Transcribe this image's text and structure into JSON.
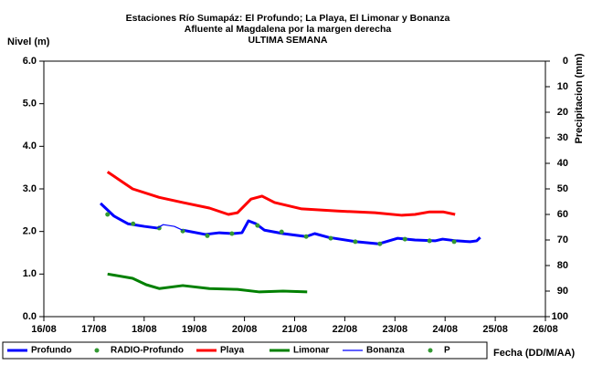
{
  "chart_data": {
    "type": "line",
    "title": [
      "Estaciones Río Sumapáz: El Profundo; La Playa, El Limonar y Bonanza",
      "Afluente al Magdalena por la margen derecha",
      "ULTIMA SEMANA"
    ],
    "ylabel": "Nivel (m)",
    "y2label": "Precipitacion (mm)",
    "xlabel": "Fecha (DD/M/AA)",
    "xlim": [
      16,
      26
    ],
    "xticks": [
      {
        "value": 16,
        "label": "16/08"
      },
      {
        "value": 17,
        "label": "17/08"
      },
      {
        "value": 18,
        "label": "18/08"
      },
      {
        "value": 19,
        "label": "19/08"
      },
      {
        "value": 20,
        "label": "20/08"
      },
      {
        "value": 21,
        "label": "21/08"
      },
      {
        "value": 22,
        "label": "22/08"
      },
      {
        "value": 23,
        "label": "23/08"
      },
      {
        "value": 24,
        "label": "24/08"
      },
      {
        "value": 25,
        "label": "25/08"
      },
      {
        "value": 26,
        "label": "26/08"
      }
    ],
    "ylim": [
      0,
      6
    ],
    "yticks": [
      {
        "value": 0,
        "label": "0.0"
      },
      {
        "value": 1,
        "label": "1.0"
      },
      {
        "value": 2,
        "label": "2.0"
      },
      {
        "value": 3,
        "label": "3.0"
      },
      {
        "value": 4,
        "label": "4.0"
      },
      {
        "value": 5,
        "label": "5.0"
      },
      {
        "value": 6,
        "label": "6.0"
      }
    ],
    "y2lim": [
      100,
      0
    ],
    "y2ticks": [
      0,
      10,
      20,
      30,
      40,
      50,
      60,
      70,
      80,
      90,
      100
    ],
    "series": [
      {
        "name": "Profundo",
        "color": "#0000ff",
        "line_width": 3,
        "marker": false,
        "x": [
          17.13,
          17.4,
          17.68,
          18.0,
          18.26,
          18.38,
          18.77,
          19.22,
          19.5,
          19.77,
          19.95,
          20.08,
          20.23,
          20.4,
          20.77,
          21.23,
          21.4,
          21.68,
          22.23,
          22.68,
          23.05,
          23.4,
          23.8,
          23.95,
          24.23,
          24.5,
          24.63,
          24.7
        ],
        "values": [
          2.66,
          2.36,
          2.18,
          2.12,
          2.08,
          null,
          2.03,
          1.93,
          1.97,
          1.95,
          1.97,
          2.25,
          2.18,
          2.03,
          1.95,
          1.88,
          1.95,
          1.86,
          1.76,
          1.71,
          1.84,
          1.8,
          1.78,
          1.82,
          1.78,
          1.76,
          1.78,
          1.86
        ]
      },
      {
        "name": "RADIO-Profundo",
        "color": "#339933",
        "line_width": 0,
        "marker": true,
        "x": [
          17.27,
          17.78,
          18.3,
          18.77,
          19.26,
          19.75,
          20.26,
          20.74,
          21.23,
          21.72,
          22.21,
          22.7,
          23.2,
          23.69,
          24.18
        ],
        "values": [
          2.4,
          2.18,
          2.08,
          2.01,
          1.9,
          1.95,
          2.14,
          1.99,
          1.88,
          1.84,
          1.76,
          1.71,
          1.82,
          1.78,
          1.76
        ]
      },
      {
        "name": "Playa",
        "color": "#ff0000",
        "line_width": 3,
        "marker": false,
        "x": [
          17.27,
          17.77,
          18.3,
          18.77,
          19.3,
          19.68,
          19.86,
          20.13,
          20.35,
          20.6,
          21.14,
          21.86,
          22.6,
          23.14,
          23.4,
          23.69,
          23.96,
          24.2
        ],
        "values": [
          3.4,
          3.0,
          2.8,
          2.68,
          2.55,
          2.4,
          2.44,
          2.76,
          2.83,
          2.68,
          2.53,
          2.48,
          2.44,
          2.38,
          2.4,
          2.46,
          2.46,
          2.4
        ]
      },
      {
        "name": "Limonar",
        "color": "#008000",
        "line_width": 3,
        "marker": false,
        "x": [
          17.27,
          17.77,
          18.04,
          18.3,
          18.77,
          19.3,
          19.86,
          20.3,
          20.77,
          21.25
        ],
        "values": [
          1.0,
          0.9,
          0.75,
          0.66,
          0.73,
          0.66,
          0.64,
          0.58,
          0.6,
          0.58
        ]
      },
      {
        "name": "Bonanza",
        "color": "#0000ff",
        "line_width": 1.2,
        "marker": false,
        "x": [
          18.26,
          18.38,
          18.6,
          18.77
        ],
        "values": [
          2.08,
          2.16,
          2.12,
          2.03
        ]
      },
      {
        "name": "P",
        "color": "#339933",
        "line_width": 0,
        "marker": true,
        "axis": "y2",
        "x": [],
        "values": []
      }
    ]
  }
}
